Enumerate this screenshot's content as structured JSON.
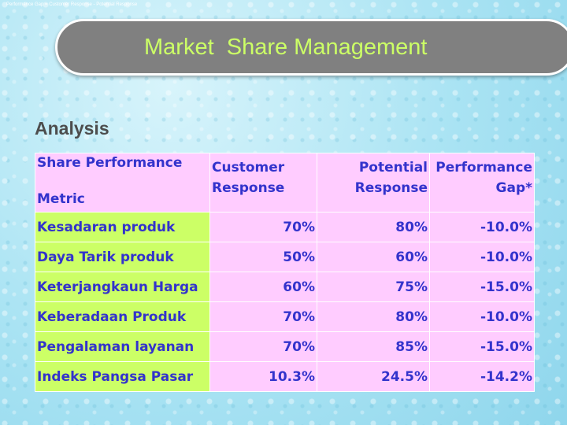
{
  "formula_line": "Performance Gap = Customer Response - Potential Response",
  "title": "Market  Share Management",
  "subtitle": "Analysis",
  "table": {
    "headers": [
      {
        "line1": "Share Performance",
        "line2": "Metric"
      },
      {
        "line1": "Customer",
        "line2": "Response"
      },
      {
        "line1": "Potential",
        "line2": "Response"
      },
      {
        "line1": "Performance",
        "line2": "Gap*"
      }
    ],
    "rows": [
      {
        "metric": "Kesadaran produk",
        "customer": "70%",
        "potential": "80%",
        "gap": "-10.0%"
      },
      {
        "metric": "Daya Tarik produk",
        "customer": "50%",
        "potential": "60%",
        "gap": "-10.0%"
      },
      {
        "metric": "Keterjangkaun Harga",
        "customer": "60%",
        "potential": "75%",
        "gap": "-15.0%"
      },
      {
        "metric": "Keberadaan Produk",
        "customer": "70%",
        "potential": "80%",
        "gap": "-10.0%"
      },
      {
        "metric": "Pengalaman layanan",
        "customer": "70%",
        "potential": "85%",
        "gap": "-15.0%"
      },
      {
        "metric": "Indeks Pangsa Pasar",
        "customer": "10.3%",
        "potential": "24.5%",
        "gap": "-14.2%"
      }
    ]
  }
}
